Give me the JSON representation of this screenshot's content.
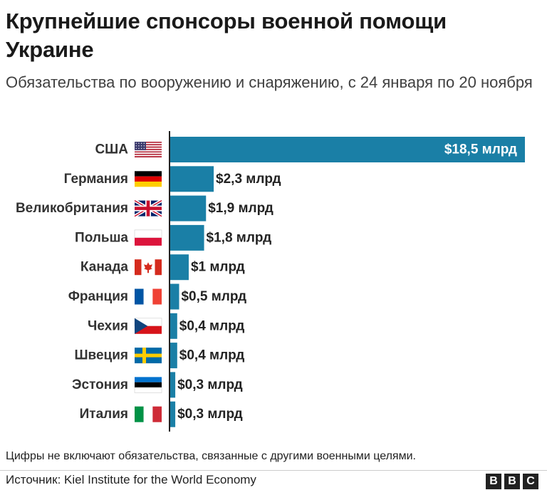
{
  "colors": {
    "bar": "#1a7fa6",
    "axis": "#222222",
    "text": "#222222"
  },
  "chart_data": {
    "type": "bar",
    "orientation": "horizontal",
    "title": "Крупнейшие спонсоры военной помощи Украине",
    "subtitle": "Обязательства по вооружению и снаряжению, с 24 января по 20 ноября",
    "unit": "млрд долларов",
    "categories": [
      "США",
      "Германия",
      "Великобритания",
      "Польша",
      "Канада",
      "Франция",
      "Чехия",
      "Швеция",
      "Эстония",
      "Италия"
    ],
    "flags": [
      "usa-flag-icon",
      "germany-flag-icon",
      "uk-flag-icon",
      "poland-flag-icon",
      "canada-flag-icon",
      "france-flag-icon",
      "czech-flag-icon",
      "sweden-flag-icon",
      "estonia-flag-icon",
      "italy-flag-icon"
    ],
    "values": [
      18.5,
      2.3,
      1.9,
      1.8,
      1.0,
      0.5,
      0.4,
      0.4,
      0.3,
      0.3
    ],
    "value_labels": [
      "$18,5 млрд",
      "$2,3 млрд",
      "$1,9 млрд",
      "$1,8 млрд",
      "$1 млрд",
      "$0,5 млрд",
      "$0,4 млрд",
      "$0,4 млрд",
      "$0,3 млрд",
      "$0,3 млрд"
    ],
    "xlim": [
      0,
      18.5
    ],
    "grid": false,
    "legend": "none"
  },
  "note": "Цифры не включают обязательства, связанные с другими военными целями.",
  "source": "Источник: Kiel Institute for the World Economy",
  "logo": {
    "letters": [
      "B",
      "B",
      "C"
    ]
  }
}
